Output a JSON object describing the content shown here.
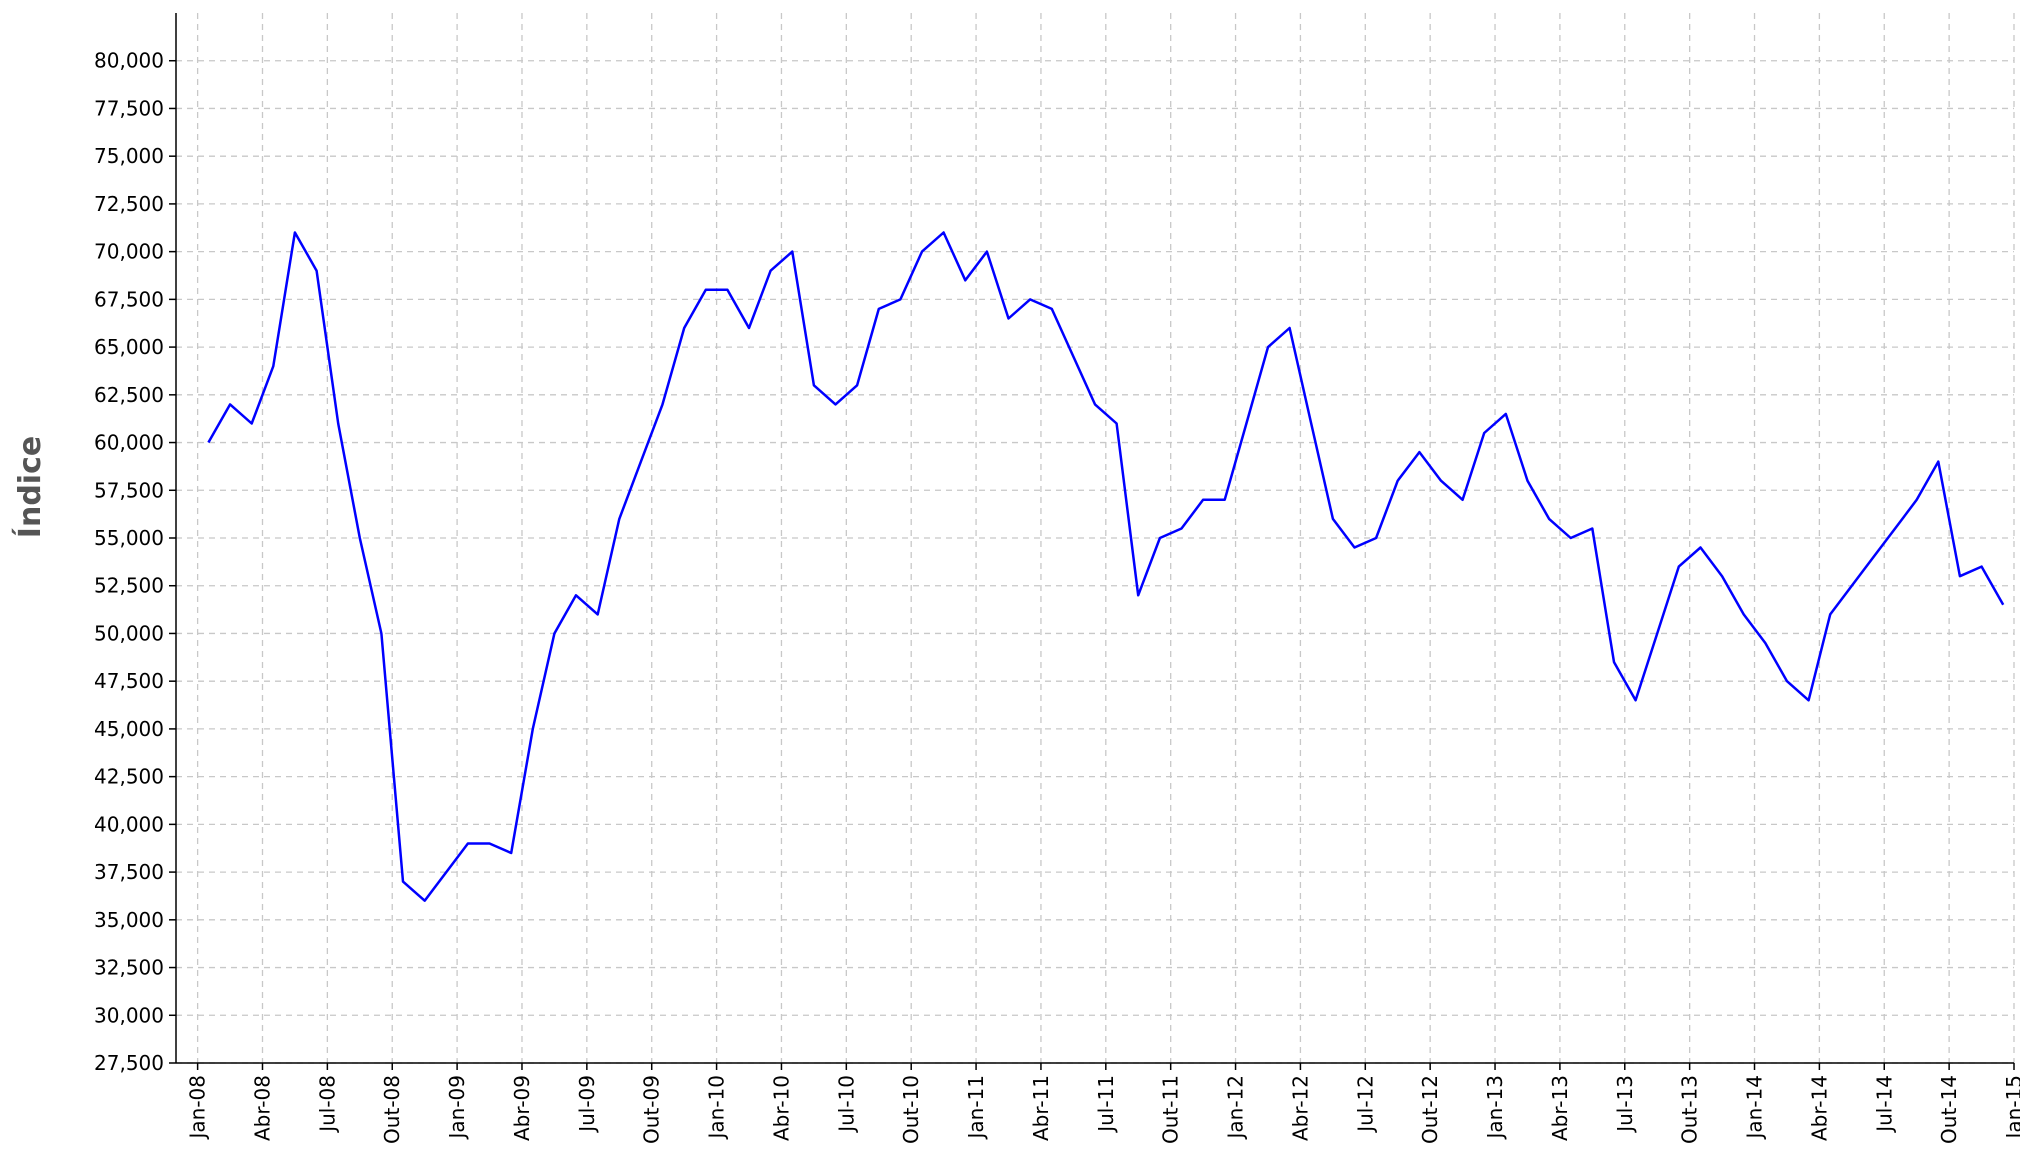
{
  "chart_data": {
    "type": "line",
    "y_label": "Índice",
    "grid": true,
    "x": [
      "2008-01",
      "2008-02",
      "2008-03",
      "2008-04",
      "2008-05",
      "2008-06",
      "2008-07",
      "2008-08",
      "2008-09",
      "2008-10",
      "2008-11",
      "2008-12",
      "2009-01",
      "2009-02",
      "2009-03",
      "2009-04",
      "2009-05",
      "2009-06",
      "2009-07",
      "2009-08",
      "2009-09",
      "2009-10",
      "2009-11",
      "2009-12",
      "2010-01",
      "2010-02",
      "2010-03",
      "2010-04",
      "2010-05",
      "2010-06",
      "2010-07",
      "2010-08",
      "2010-09",
      "2010-10",
      "2010-11",
      "2010-12",
      "2011-01",
      "2011-02",
      "2011-03",
      "2011-04",
      "2011-05",
      "2011-06",
      "2011-07",
      "2011-08",
      "2011-09",
      "2011-10",
      "2011-11",
      "2011-12",
      "2012-01",
      "2012-02",
      "2012-03",
      "2012-04",
      "2012-05",
      "2012-06",
      "2012-07",
      "2012-08",
      "2012-09",
      "2012-10",
      "2012-11",
      "2012-12",
      "2013-01",
      "2013-02",
      "2013-03",
      "2013-04",
      "2013-05",
      "2013-06",
      "2013-07",
      "2013-08",
      "2013-09",
      "2013-10",
      "2013-11",
      "2013-12",
      "2014-01",
      "2014-02",
      "2014-03",
      "2014-04",
      "2014-05",
      "2014-06",
      "2014-07",
      "2014-08",
      "2014-09",
      "2014-10",
      "2014-11",
      "2014-12"
    ],
    "series": [
      {
        "name": "Índice",
        "color": "#0000ff",
        "values": [
          60000,
          62000,
          61000,
          64000,
          71000,
          69000,
          61000,
          55000,
          50000,
          37000,
          36000,
          37500,
          39000,
          39000,
          38500,
          45000,
          50000,
          52000,
          51000,
          56000,
          59000,
          62000,
          66000,
          68000,
          68000,
          66000,
          69000,
          70000,
          63000,
          62000,
          63000,
          67000,
          67500,
          70000,
          71000,
          68500,
          70000,
          66500,
          67500,
          67000,
          64500,
          62000,
          61000,
          52000,
          55000,
          55500,
          57000,
          57000,
          61000,
          65000,
          66000,
          61000,
          56000,
          54500,
          55000,
          58000,
          59500,
          58000,
          57000,
          60500,
          61500,
          58000,
          56000,
          55000,
          55500,
          48500,
          46500,
          50000,
          53500,
          54500,
          53000,
          51000,
          49500,
          47500,
          46500,
          51000,
          52500,
          54000,
          55500,
          57000,
          59000,
          53000,
          53500,
          51500
        ]
      }
    ],
    "xlim": [
      "2007-12",
      "2015-01"
    ],
    "xticks": [
      {
        "value": "2008-01",
        "label": "Jan-08"
      },
      {
        "value": "2008-04",
        "label": "Abr-08"
      },
      {
        "value": "2008-07",
        "label": "Jul-08"
      },
      {
        "value": "2008-10",
        "label": "Out-08"
      },
      {
        "value": "2009-01",
        "label": "Jan-09"
      },
      {
        "value": "2009-04",
        "label": "Abr-09"
      },
      {
        "value": "2009-07",
        "label": "Jul-09"
      },
      {
        "value": "2009-10",
        "label": "Out-09"
      },
      {
        "value": "2010-01",
        "label": "Jan-10"
      },
      {
        "value": "2010-04",
        "label": "Abr-10"
      },
      {
        "value": "2010-07",
        "label": "Jul-10"
      },
      {
        "value": "2010-10",
        "label": "Out-10"
      },
      {
        "value": "2011-01",
        "label": "Jan-11"
      },
      {
        "value": "2011-04",
        "label": "Abr-11"
      },
      {
        "value": "2011-07",
        "label": "Jul-11"
      },
      {
        "value": "2011-10",
        "label": "Out-11"
      },
      {
        "value": "2012-01",
        "label": "Jan-12"
      },
      {
        "value": "2012-04",
        "label": "Abr-12"
      },
      {
        "value": "2012-07",
        "label": "Jul-12"
      },
      {
        "value": "2012-10",
        "label": "Out-12"
      },
      {
        "value": "2013-01",
        "label": "Jan-13"
      },
      {
        "value": "2013-04",
        "label": "Abr-13"
      },
      {
        "value": "2013-07",
        "label": "Jul-13"
      },
      {
        "value": "2013-10",
        "label": "Out-13"
      },
      {
        "value": "2014-01",
        "label": "Jan-14"
      },
      {
        "value": "2014-04",
        "label": "Abr-14"
      },
      {
        "value": "2014-07",
        "label": "Jul-14"
      },
      {
        "value": "2014-10",
        "label": "Out-14"
      },
      {
        "value": "2015-01",
        "label": "Jan-15"
      }
    ],
    "ylim": [
      27500,
      82500
    ],
    "yticks": [
      {
        "value": 27500,
        "label": "27,500"
      },
      {
        "value": 30000,
        "label": "30,000"
      },
      {
        "value": 32500,
        "label": "32,500"
      },
      {
        "value": 35000,
        "label": "35,000"
      },
      {
        "value": 37500,
        "label": "37,500"
      },
      {
        "value": 40000,
        "label": "40,000"
      },
      {
        "value": 42500,
        "label": "42,500"
      },
      {
        "value": 45000,
        "label": "45,000"
      },
      {
        "value": 47500,
        "label": "47,500"
      },
      {
        "value": 50000,
        "label": "50,000"
      },
      {
        "value": 52500,
        "label": "52,500"
      },
      {
        "value": 55000,
        "label": "55,000"
      },
      {
        "value": 57500,
        "label": "57,500"
      },
      {
        "value": 60000,
        "label": "60,000"
      },
      {
        "value": 62500,
        "label": "62,500"
      },
      {
        "value": 65000,
        "label": "65,000"
      },
      {
        "value": 67500,
        "label": "67,500"
      },
      {
        "value": 70000,
        "label": "70,000"
      },
      {
        "value": 72500,
        "label": "72,500"
      },
      {
        "value": 75000,
        "label": "75,000"
      },
      {
        "value": 77500,
        "label": "77,500"
      },
      {
        "value": 80000,
        "label": "80,000"
      }
    ]
  }
}
